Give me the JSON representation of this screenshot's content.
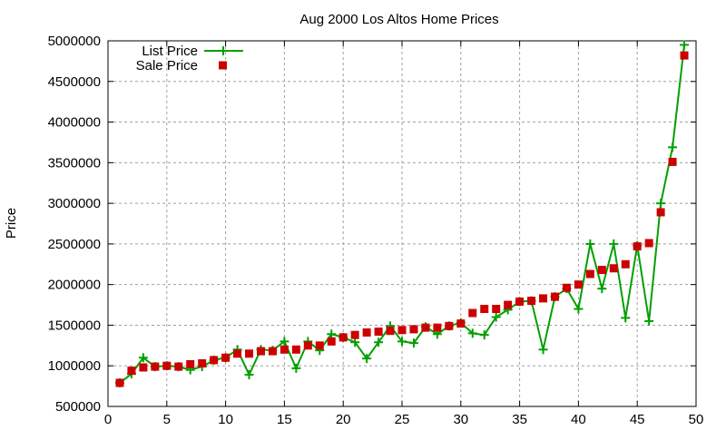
{
  "chart_data": {
    "type": "line",
    "title": "Aug 2000 Los Altos Home Prices",
    "xlabel": "",
    "ylabel": "Price",
    "xlim": [
      0,
      50
    ],
    "ylim": [
      500000,
      5000000
    ],
    "xticks": [
      "0",
      "5",
      "10",
      "15",
      "20",
      "25",
      "30",
      "35",
      "40",
      "45",
      "50"
    ],
    "yticks": [
      "500000",
      "1000000",
      "1500000",
      "2000000",
      "2500000",
      "3000000",
      "3500000",
      "4000000",
      "4500000",
      "5000000"
    ],
    "grid": true,
    "legend_position": "top-left",
    "x": [
      1,
      2,
      3,
      4,
      5,
      6,
      7,
      8,
      9,
      10,
      11,
      12,
      13,
      14,
      15,
      16,
      17,
      18,
      19,
      20,
      21,
      22,
      23,
      24,
      25,
      26,
      27,
      28,
      29,
      30,
      31,
      32,
      33,
      34,
      35,
      36,
      37,
      38,
      39,
      40,
      41,
      42,
      43,
      44,
      45,
      46,
      47,
      48,
      49
    ],
    "series": [
      {
        "name": "List Price",
        "style": "linespoints",
        "color": "#00a000",
        "values": [
          790000,
          900000,
          1100000,
          990000,
          1000000,
          990000,
          950000,
          990000,
          1070000,
          1100000,
          1200000,
          890000,
          1200000,
          1190000,
          1300000,
          970000,
          1300000,
          1190000,
          1390000,
          1350000,
          1290000,
          1090000,
          1290000,
          1490000,
          1300000,
          1280000,
          1480000,
          1390000,
          1490000,
          1530000,
          1400000,
          1380000,
          1600000,
          1690000,
          1790000,
          1800000,
          1200000,
          1850000,
          1950000,
          1700000,
          2500000,
          1950000,
          2500000,
          1590000,
          2480000,
          1550000,
          3000000,
          3690000,
          4950000
        ]
      },
      {
        "name": "Sale Price",
        "style": "points",
        "color": "#cc0000",
        "values": [
          790000,
          940000,
          980000,
          990000,
          1000000,
          990000,
          1020000,
          1030000,
          1070000,
          1100000,
          1150000,
          1150000,
          1180000,
          1180000,
          1200000,
          1200000,
          1250000,
          1250000,
          1300000,
          1350000,
          1380000,
          1410000,
          1420000,
          1430000,
          1440000,
          1450000,
          1470000,
          1470000,
          1490000,
          1520000,
          1650000,
          1700000,
          1700000,
          1750000,
          1790000,
          1800000,
          1830000,
          1850000,
          1960000,
          2000000,
          2130000,
          2180000,
          2200000,
          2250000,
          2470000,
          2510000,
          2890000,
          3510000,
          4820000
        ]
      }
    ]
  }
}
